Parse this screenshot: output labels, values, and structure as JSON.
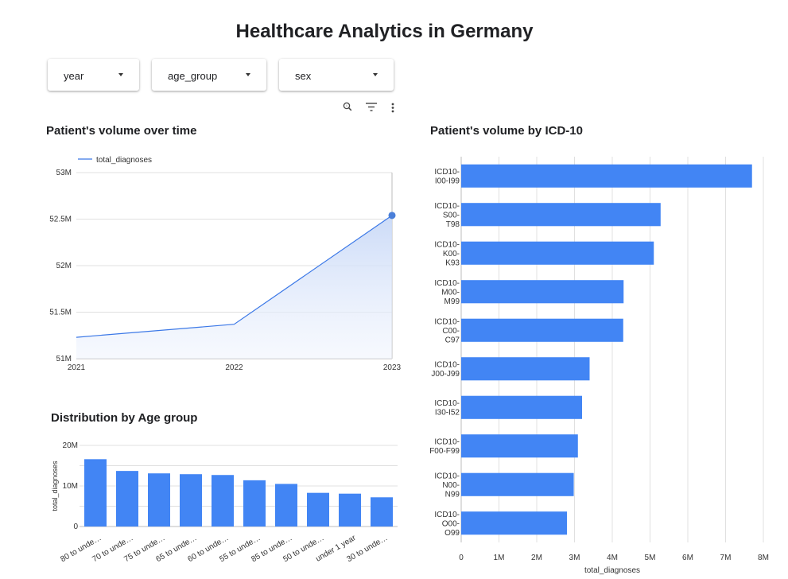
{
  "page": {
    "title": "Healthcare Analytics in Germany"
  },
  "filters": [
    {
      "label": "year"
    },
    {
      "label": "age_group"
    },
    {
      "label": "sex"
    }
  ],
  "toolbar": {
    "icons": [
      "search-icon",
      "filter-icon",
      "more-vert-icon"
    ]
  },
  "colors": {
    "bar": "#4285f4",
    "line": "#3b78e7",
    "grid": "#e0e0e0",
    "text": "#333333"
  },
  "chart_data": [
    {
      "type": "area",
      "title": "Patient's volume over time",
      "legend": [
        "total_diagnoses"
      ],
      "legend_position": "top-left",
      "x": [
        "2021",
        "2022",
        "2023"
      ],
      "series": [
        {
          "name": "total_diagnoses",
          "values": [
            51230000,
            51370000,
            52540000
          ]
        }
      ],
      "ylim": [
        51000000,
        53000000
      ],
      "yticks": [
        "51M",
        "51.5M",
        "52M",
        "52.5M",
        "53M"
      ],
      "grid": true
    },
    {
      "type": "bar",
      "orientation": "horizontal",
      "title": "Patient's volume by ICD-10",
      "xlabel": "total_diagnoses",
      "categories": [
        [
          "ICD10-",
          "I00-I99"
        ],
        [
          "ICD10-",
          "S00-",
          "T98"
        ],
        [
          "ICD10-",
          "K00-",
          "K93"
        ],
        [
          "ICD10-",
          "M00-",
          "M99"
        ],
        [
          "ICD10-",
          "C00-",
          "C97"
        ],
        [
          "ICD10-",
          "J00-J99"
        ],
        [
          "ICD10-",
          "I30-I52"
        ],
        [
          "ICD10-",
          "F00-F99"
        ],
        [
          "ICD10-",
          "N00-",
          "N99"
        ],
        [
          "ICD10-",
          "O00-",
          "O99"
        ]
      ],
      "values": [
        7700000,
        5280000,
        5100000,
        4300000,
        4290000,
        3400000,
        3200000,
        3090000,
        2980000,
        2800000
      ],
      "xlim": [
        0,
        8000000
      ],
      "xticks": [
        "0",
        "1M",
        "2M",
        "3M",
        "4M",
        "5M",
        "6M",
        "7M",
        "8M"
      ],
      "grid": true
    },
    {
      "type": "bar",
      "title": "Distribution by Age group",
      "ylabel": "total_diagnoses",
      "categories": [
        "80 to unde…",
        "70 to unde…",
        "75 to unde…",
        "65 to unde…",
        "60 to unde…",
        "55 to unde…",
        "85 to unde…",
        "50 to unde…",
        "under 1 year",
        "30 to unde…"
      ],
      "values": [
        16600000,
        13700000,
        13100000,
        12900000,
        12700000,
        11400000,
        10500000,
        8300000,
        8100000,
        7200000
      ],
      "ylim": [
        0,
        20000000
      ],
      "yticks": [
        "0",
        "10M",
        "20M"
      ],
      "grid": true
    }
  ]
}
